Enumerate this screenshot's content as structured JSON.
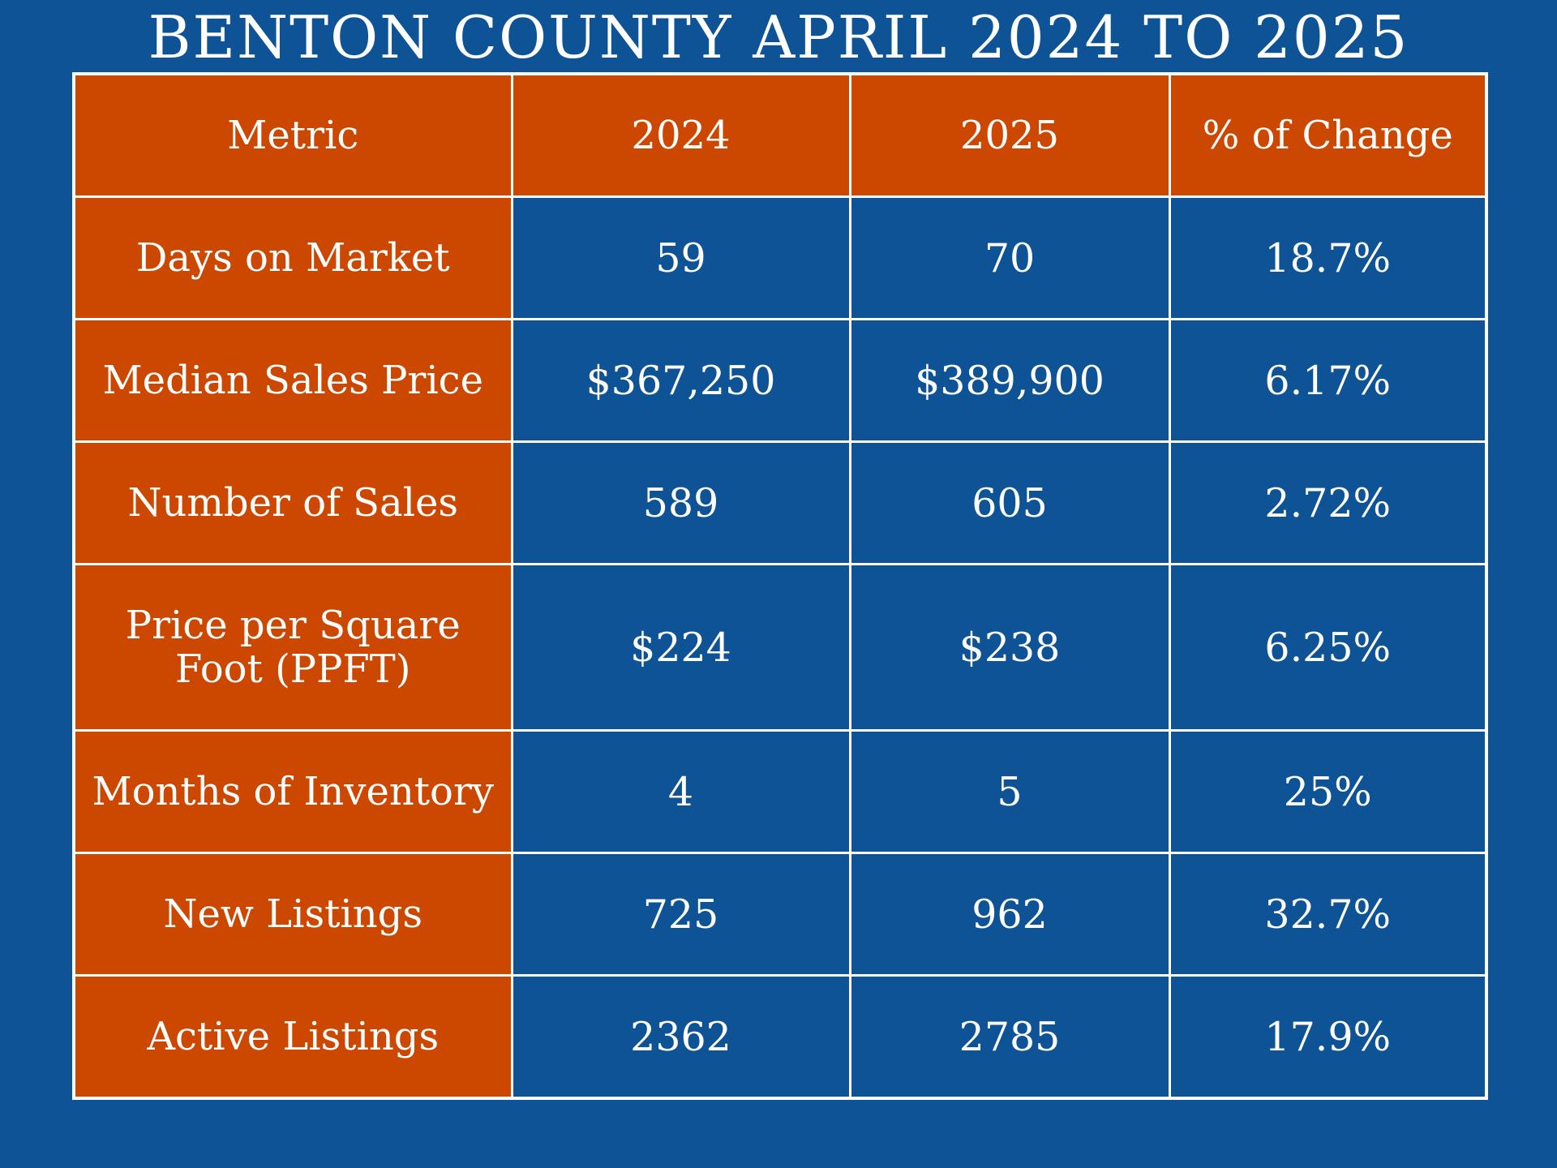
{
  "title": "BENTON COUNTY APRIL 2024 TO 2025",
  "chart_data": {
    "type": "table",
    "columns": [
      "Metric",
      "2024",
      "2025",
      "% of Change"
    ],
    "rows": [
      {
        "metric": "Days on Market",
        "y2024": "59",
        "y2025": "70",
        "change": "18.7%"
      },
      {
        "metric": "Median Sales Price",
        "y2024": "$367,250",
        "y2025": "$389,900",
        "change": "6.17%"
      },
      {
        "metric": "Number of Sales",
        "y2024": "589",
        "y2025": "605",
        "change": "2.72%"
      },
      {
        "metric": "Price per Square Foot (PPFT)",
        "y2024": "$224",
        "y2025": "$238",
        "change": "6.25%"
      },
      {
        "metric": "Months of Inventory",
        "y2024": "4",
        "y2025": "5",
        "change": "25%"
      },
      {
        "metric": "New Listings",
        "y2024": "725",
        "y2025": "962",
        "change": "32.7%"
      },
      {
        "metric": "Active Listings",
        "y2024": "2362",
        "y2025": "2785",
        "change": "17.9%"
      }
    ]
  },
  "colors": {
    "background": "#0e5396",
    "header_fill": "#cc4700",
    "grid": "#ffffff",
    "text": "#ffffff"
  }
}
